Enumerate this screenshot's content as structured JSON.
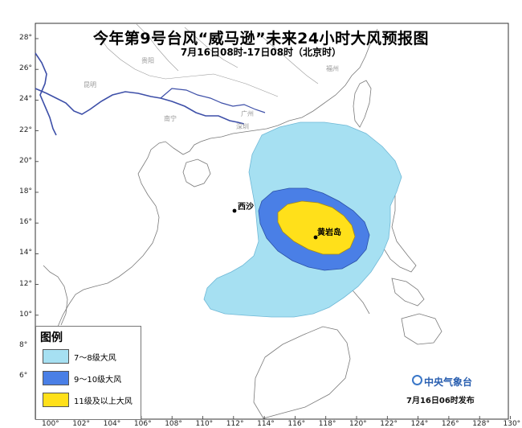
{
  "title": "今年第9号台风“威马逊”未来24小时大风预报图",
  "subtitle": "7月16日08时-17日08时（北京时）",
  "x_ticks": [
    "100°",
    "102°",
    "104°",
    "106°",
    "108°",
    "110°",
    "112°",
    "114°",
    "116°",
    "118°",
    "120°",
    "122°",
    "124°",
    "126°",
    "128°",
    "130°"
  ],
  "y_ticks": [
    "28°",
    "26°",
    "24°",
    "22°",
    "20°",
    "18°",
    "16°",
    "14°",
    "12°",
    "10°",
    "8°",
    "6°"
  ],
  "places": {
    "guiyang": "贵阳",
    "kunming": "昆明",
    "nanning": "南宁",
    "guangzhou": "广州",
    "fuzhou": "福州",
    "shenzhen": "深圳"
  },
  "markers": {
    "xisha": "西沙",
    "huangyan": "黄岩岛"
  },
  "legend": {
    "title": "图例",
    "items": [
      {
        "label": "7～8级大风",
        "color": "#a6e0f2"
      },
      {
        "label": "9～10级大风",
        "color": "#4a7fe6"
      },
      {
        "label": "11级及以上大风",
        "color": "#ffe01a"
      }
    ]
  },
  "agency": "中央气象台",
  "issue_note": "7月16日06时发布",
  "colors": {
    "land": "#ffffff",
    "coast": "#7a7a7a",
    "border": "#3d4fa8",
    "frame": "#333333"
  }
}
